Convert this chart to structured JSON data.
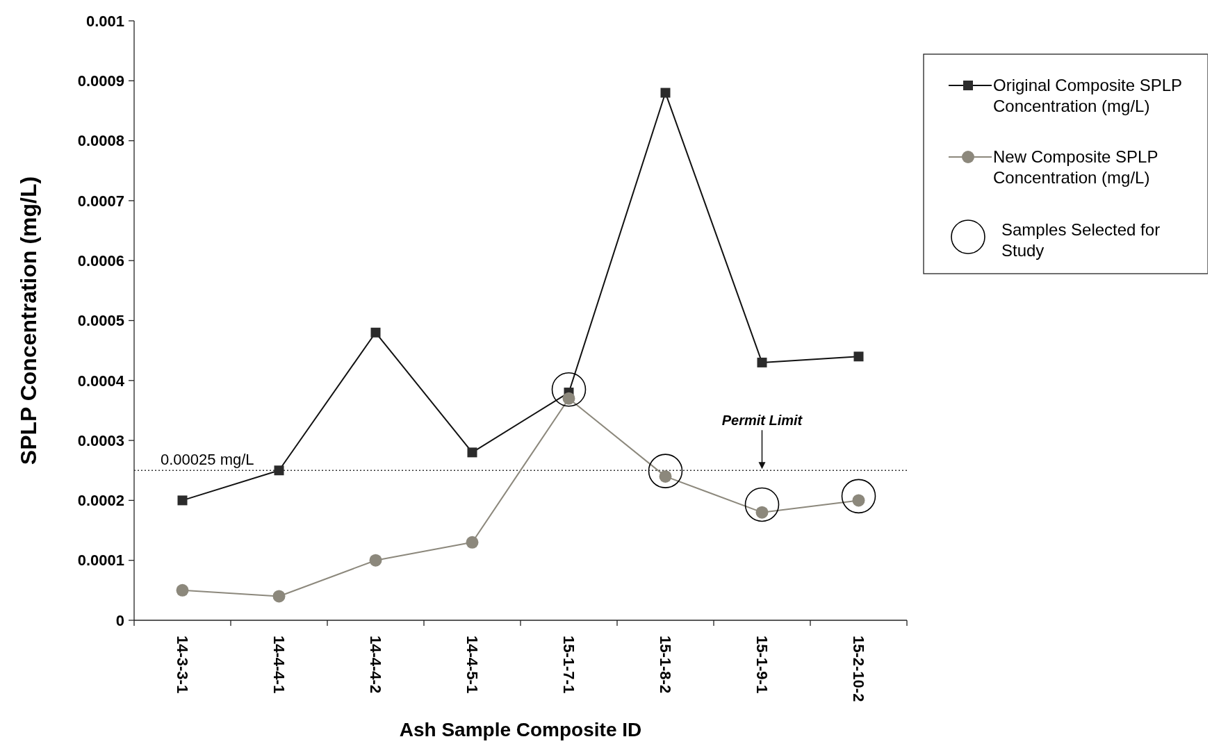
{
  "chart_data": {
    "type": "line",
    "xlabel": "Ash Sample Composite ID",
    "ylabel": "SPLP Concentration (mg/L)",
    "categories": [
      "14-3-3-1",
      "14-4-4-1",
      "14-4-4-2",
      "14-4-5-1",
      "15-1-7-1",
      "15-1-8-2",
      "15-1-9-1",
      "15-2-10-2"
    ],
    "series": [
      {
        "name": "Original Composite SPLP Concentration (mg/L)",
        "color": "#2b2b2b",
        "marker": "square",
        "values": [
          0.0002,
          0.00025,
          0.00048,
          0.00028,
          0.00038,
          0.00088,
          0.00043,
          0.00044
        ]
      },
      {
        "name": "New Composite SPLP Concentration (mg/L)",
        "color": "#8c887c",
        "marker": "circle",
        "values": [
          5e-05,
          4e-05,
          0.0001,
          0.00013,
          0.00037,
          0.00024,
          0.00018,
          0.0002
        ]
      },
      {
        "name": "Samples Selected for Study",
        "type": "scatter",
        "color": "#000000",
        "marker": "circle",
        "values": [
          null,
          null,
          null,
          null,
          0.000385,
          0.000249,
          0.000193,
          0.000207
        ]
      }
    ],
    "ylim": [
      0,
      0.001
    ],
    "yticks": [
      0,
      0.0001,
      0.0002,
      0.0003,
      0.0004,
      0.0005,
      0.0006,
      0.0007,
      0.0008,
      0.0009,
      0.001
    ],
    "ref_lines": [
      {
        "axis": "y",
        "value": 0.00025,
        "label": "0.00025 mg/L",
        "line_style": "dotted",
        "color": "#333333"
      }
    ],
    "annotations": [
      "Permit Limit"
    ],
    "grid": false,
    "legend": "right"
  }
}
